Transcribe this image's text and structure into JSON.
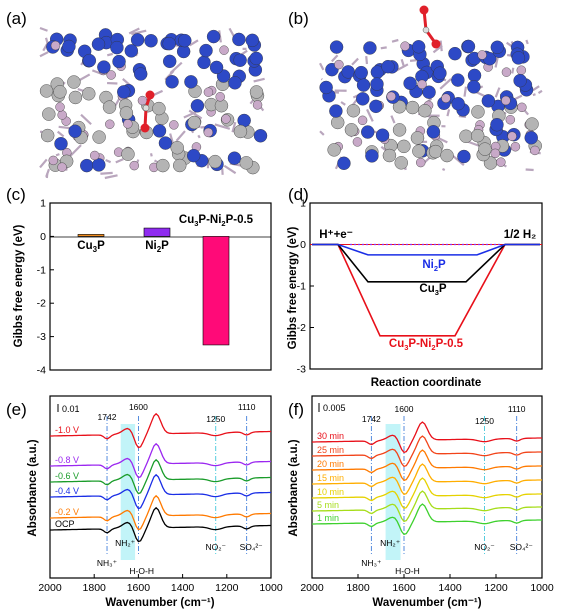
{
  "panels": {
    "a": "(a)",
    "b": "(b)",
    "c": "(c)",
    "d": "(d)",
    "e": "(e)",
    "f": "(f)"
  },
  "colors": {
    "atom_blue": "#2d49c6",
    "atom_pink": "#c8a9c8",
    "atom_gray": "#b4b4b4",
    "oxygen_red": "#e0202a"
  },
  "chart_data": [
    {
      "panel": "c",
      "type": "bar",
      "ylabel": "Gibbs free energy (eV)",
      "ylim": [
        -4,
        1
      ],
      "yticks": [
        "1",
        "0",
        "-1",
        "-2",
        "-3",
        "-4"
      ],
      "categories": [
        "Cu3P",
        "Ni2P",
        "Cu3P-Ni2P-0.5"
      ],
      "labels": {
        "cu3p": "Cu",
        "cu3p_sub": "3",
        "cu3p_tail": "P",
        "ni2p": "Ni",
        "ni2p_sub": "2",
        "ni2p_tail": "P",
        "het": "Cu",
        "het_sub1": "3",
        "het_mid": "P-Ni",
        "het_sub2": "2",
        "het_tail": "P-0.5"
      },
      "values": [
        0.06,
        0.25,
        -3.25
      ],
      "colors": [
        "#f08b1c",
        "#8f2bf0",
        "#ff0a78"
      ]
    },
    {
      "panel": "d",
      "type": "line",
      "xlabel": "Reaction coordinate",
      "ylabel": "Gibbs free energy (eV)",
      "ylim": [
        -3,
        1
      ],
      "yticks": [
        "1",
        "0",
        "-1",
        "-2",
        "-3"
      ],
      "start_label": "H⁺+e⁻",
      "end_label": "1/2 H₂",
      "series": [
        {
          "name": "Ni2P",
          "label": "Ni",
          "sub": "2",
          "tail": "P",
          "color": "#1a2ee6",
          "values": [
            0,
            -0.25,
            0
          ]
        },
        {
          "name": "Cu3P",
          "label": "Cu",
          "sub": "3",
          "tail": "P",
          "color": "#000000",
          "values": [
            0,
            -0.9,
            0
          ]
        },
        {
          "name": "Cu3P-Ni2P-0.5",
          "label": "Cu",
          "sub": "3",
          "tail": "P-Ni",
          "sub2": "2",
          "tail2": "P-0.5",
          "color": "#e8101a",
          "values": [
            0,
            -2.2,
            0
          ]
        }
      ]
    },
    {
      "panel": "e",
      "type": "line",
      "xlabel": "Wavenumber (cm⁻¹)",
      "ylabel": "Absorbance (a.u.)",
      "xlim": [
        2000,
        1000
      ],
      "xticks": [
        "2000",
        "1800",
        "1600",
        "1400",
        "1200",
        "1000"
      ],
      "scale_label": "0.01",
      "annotations": [
        "1742",
        "1600",
        "1250",
        "1110",
        "NH₃⁺",
        "NH₂⁺",
        "H-O-H",
        "NO₂⁻",
        "SO₄²⁻"
      ],
      "series": [
        {
          "name": "-1.0 V",
          "color": "#e8101a"
        },
        {
          "name": "-0.8 V",
          "color": "#9b27f0"
        },
        {
          "name": "-0.6 V",
          "color": "#1a9c2a"
        },
        {
          "name": "-0.4 V",
          "color": "#1a2ee6"
        },
        {
          "name": "-0.2 V",
          "color": "#ff7a00"
        },
        {
          "name": "OCP",
          "color": "#000000"
        }
      ]
    },
    {
      "panel": "f",
      "type": "line",
      "xlabel": "Wavenumber (cm⁻¹)",
      "ylabel": "Absorbance (a.u.)",
      "xlim": [
        2000,
        1000
      ],
      "xticks": [
        "2000",
        "1800",
        "1600",
        "1400",
        "1200",
        "1000"
      ],
      "scale_label": "0.005",
      "annotations": [
        "1742",
        "1600",
        "1250",
        "1110",
        "NH₃⁺",
        "NH₂⁺",
        "H-O-H",
        "NO₂⁻",
        "SO₄²⁻"
      ],
      "series": [
        {
          "name": "30 min",
          "color": "#e8101a"
        },
        {
          "name": "25 min",
          "color": "#f2441a"
        },
        {
          "name": "20 min",
          "color": "#ff7a00"
        },
        {
          "name": "15 min",
          "color": "#ffae00"
        },
        {
          "name": "10 min",
          "color": "#e6d200"
        },
        {
          "name": "5 min",
          "color": "#a6dd1a"
        },
        {
          "name": "1 min",
          "color": "#3ed12e"
        }
      ]
    }
  ]
}
